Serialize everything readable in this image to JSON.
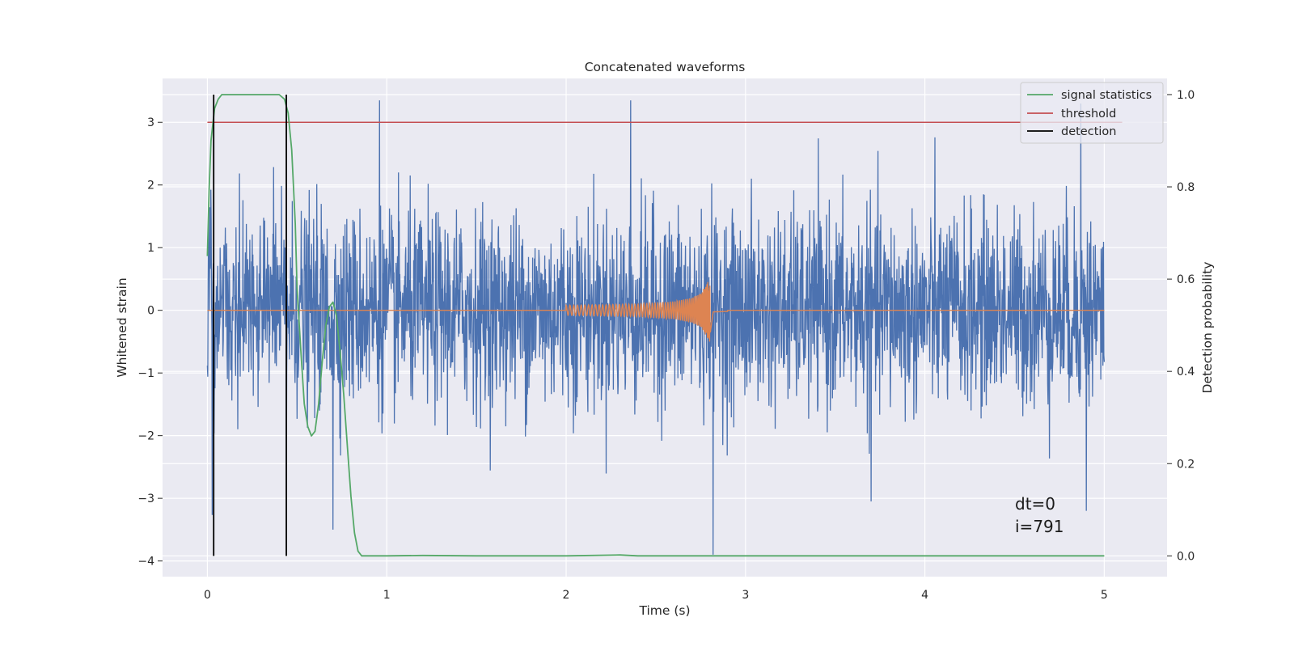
{
  "chart_data": {
    "type": "line",
    "title": "Concatenated waveforms",
    "xlabel": "Time (s)",
    "ylabel": "Whitened strain",
    "y2label": "Detection probability",
    "xlim": [
      -0.25,
      5.35
    ],
    "ylim": [
      -4.25,
      3.7
    ],
    "y2lim": [
      -0.045,
      1.035
    ],
    "x_ticks": [
      0,
      1,
      2,
      3,
      4,
      5
    ],
    "y_ticks": [
      -4,
      -3,
      -2,
      -1,
      0,
      1,
      2,
      3
    ],
    "y2_ticks": [
      0.0,
      0.2,
      0.4,
      0.6,
      0.8,
      1.0
    ],
    "x_tick_labels": [
      "0",
      "1",
      "2",
      "3",
      "4",
      "5"
    ],
    "y_tick_labels": [
      "−4",
      "−3",
      "−2",
      "−1",
      "0",
      "1",
      "2",
      "3"
    ],
    "y2_tick_labels": [
      "0.0",
      "0.2",
      "0.4",
      "0.6",
      "0.8",
      "1.0"
    ],
    "grid": true,
    "legend_position": "top-right",
    "colors": {
      "background": "#eaeaf2",
      "grid": "#ffffff",
      "strain": "#4c72b0",
      "template": "#dd8452",
      "signal_statistics": "#55a868",
      "threshold": "#c44e52",
      "detection": "#000000"
    },
    "series": [
      {
        "name": "whitened strain (noise)",
        "axis": "left",
        "x_range": [
          0,
          5
        ],
        "typical_amplitude": 1.4,
        "peak_max": 3.35,
        "peak_min": -3.9
      },
      {
        "name": "injected waveform",
        "axis": "left",
        "x": [
          0,
          2.0,
          2.2,
          2.4,
          2.6,
          2.7,
          2.75,
          2.8,
          2.82,
          2.9,
          5.0
        ],
        "amplitude": [
          0,
          0.08,
          0.09,
          0.1,
          0.14,
          0.2,
          0.27,
          0.5,
          0.03,
          0.02,
          0
        ]
      },
      {
        "name": "signal statistics",
        "axis": "right",
        "x": [
          0,
          0.01,
          0.02,
          0.04,
          0.06,
          0.08,
          0.1,
          0.15,
          0.2,
          0.3,
          0.4,
          0.43,
          0.45,
          0.47,
          0.49,
          0.5,
          0.52,
          0.54,
          0.56,
          0.58,
          0.6,
          0.62,
          0.64,
          0.66,
          0.68,
          0.7,
          0.72,
          0.74,
          0.76,
          0.78,
          0.8,
          0.82,
          0.84,
          0.86,
          0.9,
          1.0,
          1.2,
          1.5,
          2.0,
          2.3,
          2.4,
          2.5,
          3.0,
          4.0,
          5.0
        ],
        "y": [
          0.65,
          0.8,
          0.9,
          0.97,
          0.99,
          1.0,
          1.0,
          1.0,
          1.0,
          1.0,
          1.0,
          0.99,
          0.96,
          0.88,
          0.72,
          0.58,
          0.45,
          0.33,
          0.28,
          0.26,
          0.27,
          0.33,
          0.42,
          0.5,
          0.54,
          0.55,
          0.52,
          0.44,
          0.35,
          0.24,
          0.13,
          0.05,
          0.01,
          0.0,
          0.0,
          0.0,
          0.001,
          0.0,
          0.0,
          0.002,
          0.0,
          0.0,
          0.0,
          0.0,
          0.0
        ]
      },
      {
        "name": "threshold",
        "axis": "left",
        "x": [
          0,
          5.1
        ],
        "y": [
          3,
          3
        ]
      },
      {
        "name": "detection",
        "axis": "right",
        "x": [
          0.035,
          0.44
        ],
        "y_range": [
          0,
          1.0
        ]
      }
    ],
    "legend": [
      {
        "label": "signal statistics",
        "color": "#55a868"
      },
      {
        "label": "threshold",
        "color": "#c44e52"
      },
      {
        "label": "detection",
        "color": "#000000"
      }
    ],
    "annotations": [
      "dt=0",
      "i=791"
    ]
  }
}
